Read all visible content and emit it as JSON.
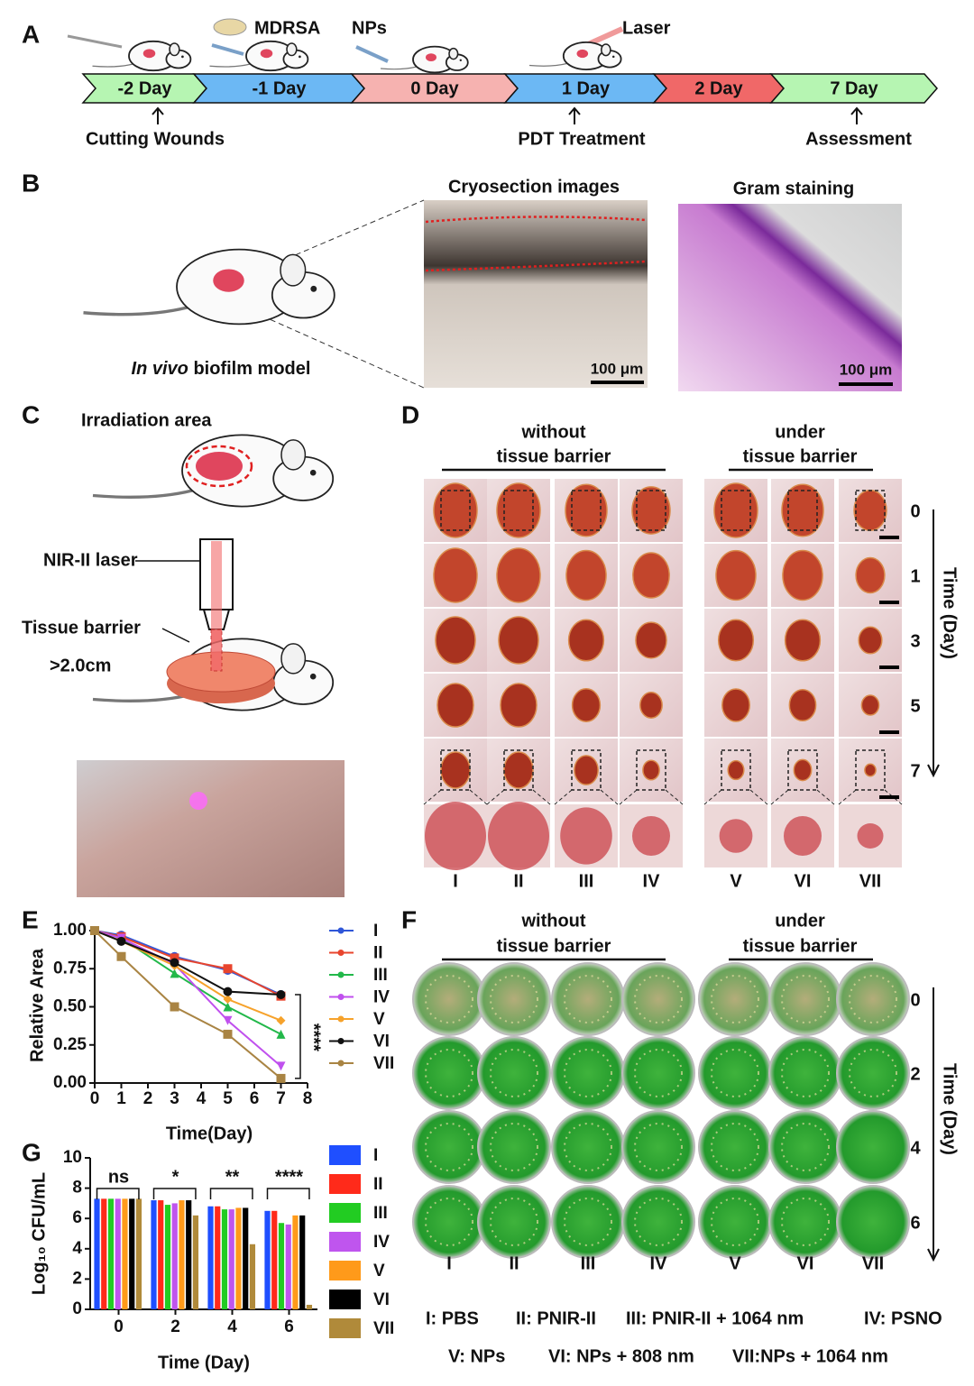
{
  "panel_labels": [
    "A",
    "B",
    "C",
    "D",
    "E",
    "F",
    "G"
  ],
  "timeline": {
    "top_labels": [
      "MDRSA",
      "NPs",
      "Laser"
    ],
    "stages": [
      "-2 Day",
      "-1 Day",
      "0 Day",
      "1 Day",
      "2 Day",
      "7 Day"
    ],
    "events": [
      "Cutting Wounds",
      "PDT Treatment",
      "Assessment"
    ]
  },
  "model": {
    "caption_italic": "In vivo",
    "caption": "biofilm model",
    "cryosection_title": "Cryosection images",
    "gram_title": "Gram staining",
    "scale_bar": "100 μm"
  },
  "irradiation": {
    "area": "Irradiation area",
    "laser": "NIR-II laser",
    "barrier": "Tissue barrier",
    "depth": ">2.0cm"
  },
  "wound_photos": {
    "group_without": [
      "without",
      "tissue barrier"
    ],
    "group_under": [
      "under",
      "tissue barrier"
    ],
    "days": [
      "0",
      "1",
      "3",
      "5",
      "7"
    ],
    "axis_label": "Time (Day)",
    "groups": [
      "I",
      "II",
      "III",
      "IV",
      "V",
      "VI",
      "VII"
    ]
  },
  "plate_photos": {
    "group_without": [
      "without",
      "tissue barrier"
    ],
    "group_under": [
      "under",
      "tissue barrier"
    ],
    "days": [
      "0",
      "2",
      "4",
      "6"
    ],
    "axis_label": "Time (Day)",
    "groups": [
      "I",
      "II",
      "III",
      "IV",
      "V",
      "VI",
      "VII"
    ]
  },
  "legend_key": [
    "I: PBS",
    "II: PNIR-II",
    "III: PNIR-II + 1064 nm",
    "IV: PSNO",
    "V: NPs",
    "VI: NPs + 808 nm",
    "VII:NPs + 1064 nm"
  ],
  "chart_data": [
    {
      "type": "line",
      "x_label": "Time(Day)",
      "y_label": "Relative Area",
      "annotation": "****",
      "x": [
        0,
        1,
        3,
        5,
        7
      ],
      "xlim": [
        0,
        8
      ],
      "xticks": [
        0,
        1,
        2,
        3,
        4,
        5,
        6,
        7,
        8
      ],
      "ylim": [
        0,
        1
      ],
      "yticks": [
        {
          "value": 0,
          "label": "0.00"
        },
        {
          "value": 0.25,
          "label": "0.25"
        },
        {
          "value": 0.5,
          "label": "0.50"
        },
        {
          "value": 0.75,
          "label": "0.75"
        },
        {
          "value": 1,
          "label": "1.00"
        }
      ],
      "series": [
        {
          "name": "I",
          "color": "#2f56d8",
          "values": [
            1,
            0.97,
            0.83,
            0.74,
            0.58
          ]
        },
        {
          "name": "II",
          "color": "#e8452e",
          "values": [
            1,
            0.96,
            0.82,
            0.75,
            0.57
          ]
        },
        {
          "name": "III",
          "color": "#22b84a",
          "values": [
            1,
            0.95,
            0.72,
            0.5,
            0.32
          ]
        },
        {
          "name": "IV",
          "color": "#c050ee",
          "values": [
            1,
            0.95,
            0.78,
            0.41,
            0.11
          ]
        },
        {
          "name": "V",
          "color": "#f6a22b",
          "values": [
            1,
            0.93,
            0.77,
            0.55,
            0.41
          ]
        },
        {
          "name": "VI",
          "color": "#111111",
          "values": [
            1,
            0.93,
            0.79,
            0.6,
            0.58
          ]
        },
        {
          "name": "VII",
          "color": "#a98443",
          "values": [
            1,
            0.83,
            0.5,
            0.32,
            0.03
          ]
        }
      ]
    },
    {
      "type": "bar",
      "x_label": "Time (Day)",
      "y_label": "Log₁₀ CFU/mL",
      "categories": [
        "0",
        "2",
        "4",
        "6"
      ],
      "annotations": [
        "ns",
        "*",
        "**",
        "****"
      ],
      "ylim": [
        0,
        10
      ],
      "yticks": [
        0,
        2,
        4,
        6,
        8,
        10
      ],
      "series": [
        {
          "name": "I",
          "color": "#1f4fff",
          "values": [
            7.3,
            7.2,
            6.8,
            6.5
          ]
        },
        {
          "name": "II",
          "color": "#ff2a1a",
          "values": [
            7.3,
            7.2,
            6.8,
            6.5
          ]
        },
        {
          "name": "III",
          "color": "#22cc22",
          "values": [
            7.3,
            6.9,
            6.6,
            5.7
          ]
        },
        {
          "name": "IV",
          "color": "#bf55ee",
          "values": [
            7.3,
            7.0,
            6.6,
            5.6
          ]
        },
        {
          "name": "V",
          "color": "#ff9a1a",
          "values": [
            7.3,
            7.2,
            6.7,
            6.2
          ]
        },
        {
          "name": "VI",
          "color": "#000000",
          "values": [
            7.3,
            7.2,
            6.7,
            6.2
          ]
        },
        {
          "name": "VII",
          "color": "#b08a3a",
          "values": [
            7.3,
            6.2,
            4.3,
            0.3
          ]
        }
      ]
    }
  ]
}
